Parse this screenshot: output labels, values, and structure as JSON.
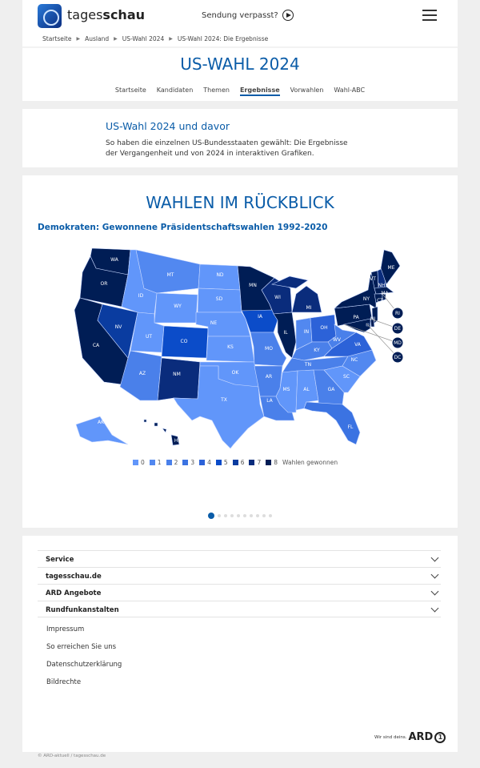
{
  "header": {
    "brand_light": "tages",
    "brand_bold": "schau",
    "sendung": "Sendung verpasst?"
  },
  "breadcrumb": [
    "Startseite",
    "Ausland",
    "US-Wahl 2024",
    "US-Wahl 2024: Die Ergebnisse"
  ],
  "page_title": "US-WAHL 2024",
  "subnav": [
    {
      "label": "Startseite"
    },
    {
      "label": "Kandidaten"
    },
    {
      "label": "Themen"
    },
    {
      "label": "Ergebnisse",
      "active": true
    },
    {
      "label": "Vorwahlen"
    },
    {
      "label": "Wahl-ABC"
    }
  ],
  "intro": {
    "heading": "US-Wahl 2024 und davor",
    "text": "So haben die einzelnen US-Bundesstaaten gewählt: Die Ergebnisse der Vergangenheit und von 2024 in interaktiven Grafiken."
  },
  "chart": {
    "title": "WAHLEN IM RÜCKBLICK",
    "subtitle": "Demokraten: Gewonnene Präsidentschaftswahlen 1992-2020",
    "legend_values": [
      "0",
      "1",
      "2",
      "3",
      "4",
      "5",
      "6",
      "7",
      "8"
    ],
    "legend_label": "Wahlen gewonnen",
    "colors": [
      "#6196fa",
      "#5288f0",
      "#4a80ea",
      "#3b73e2",
      "#2c62d8",
      "#0b4cc9",
      "#0a3ca0",
      "#0a2c7c",
      "#001d55"
    ],
    "carousel": {
      "slides": 10,
      "active": 1
    }
  },
  "chart_data": {
    "type": "choropleth",
    "title": "Demokraten: Gewonnene Präsidentschaftswahlen 1992-2020",
    "legend": "Wahlen gewonnen",
    "states": [
      {
        "code": "WA",
        "wins": 8
      },
      {
        "code": "OR",
        "wins": 8
      },
      {
        "code": "CA",
        "wins": 8
      },
      {
        "code": "NV",
        "wins": 6
      },
      {
        "code": "ID",
        "wins": 0
      },
      {
        "code": "MT",
        "wins": 1
      },
      {
        "code": "WY",
        "wins": 0
      },
      {
        "code": "UT",
        "wins": 0
      },
      {
        "code": "CO",
        "wins": 5
      },
      {
        "code": "AZ",
        "wins": 2
      },
      {
        "code": "NM",
        "wins": 7
      },
      {
        "code": "ND",
        "wins": 0
      },
      {
        "code": "SD",
        "wins": 0
      },
      {
        "code": "NE",
        "wins": 0
      },
      {
        "code": "KS",
        "wins": 0
      },
      {
        "code": "OK",
        "wins": 0
      },
      {
        "code": "TX",
        "wins": 0
      },
      {
        "code": "MN",
        "wins": 8
      },
      {
        "code": "IA",
        "wins": 5
      },
      {
        "code": "MO",
        "wins": 2
      },
      {
        "code": "AR",
        "wins": 2
      },
      {
        "code": "LA",
        "wins": 2
      },
      {
        "code": "WI",
        "wins": 7
      },
      {
        "code": "IL",
        "wins": 8
      },
      {
        "code": "MI",
        "wins": 7
      },
      {
        "code": "IN",
        "wins": 1
      },
      {
        "code": "OH",
        "wins": 4
      },
      {
        "code": "KY",
        "wins": 2
      },
      {
        "code": "TN",
        "wins": 2
      },
      {
        "code": "MS",
        "wins": 0
      },
      {
        "code": "AL",
        "wins": 0
      },
      {
        "code": "GA",
        "wins": 2
      },
      {
        "code": "FL",
        "wins": 3
      },
      {
        "code": "SC",
        "wins": 0
      },
      {
        "code": "NC",
        "wins": 1
      },
      {
        "code": "VA",
        "wins": 4
      },
      {
        "code": "WV",
        "wins": 2
      },
      {
        "code": "PA",
        "wins": 8
      },
      {
        "code": "NY",
        "wins": 8
      },
      {
        "code": "VT",
        "wins": 8
      },
      {
        "code": "NH",
        "wins": 7
      },
      {
        "code": "ME",
        "wins": 8
      },
      {
        "code": "MA",
        "wins": 8
      },
      {
        "code": "CT",
        "wins": 8
      },
      {
        "code": "NJ",
        "wins": 8
      },
      {
        "code": "RI",
        "wins": 8
      },
      {
        "code": "DE",
        "wins": 8
      },
      {
        "code": "MD",
        "wins": 8
      },
      {
        "code": "DC",
        "wins": 8
      },
      {
        "code": "AK",
        "wins": 0
      },
      {
        "code": "HI",
        "wins": 8
      }
    ]
  },
  "footer": {
    "accordions": [
      "Service",
      "tagesschau.de",
      "ARD Angebote",
      "Rundfunkanstalten"
    ],
    "links": [
      "Impressum",
      "So erreichen Sie uns",
      "Datenschutzerklärung",
      "Bildrechte"
    ],
    "ard_slogan": "Wir sind deins.",
    "ard_logo": "ARD",
    "copyright": "© ARD-aktuell / tagesschau.de"
  }
}
